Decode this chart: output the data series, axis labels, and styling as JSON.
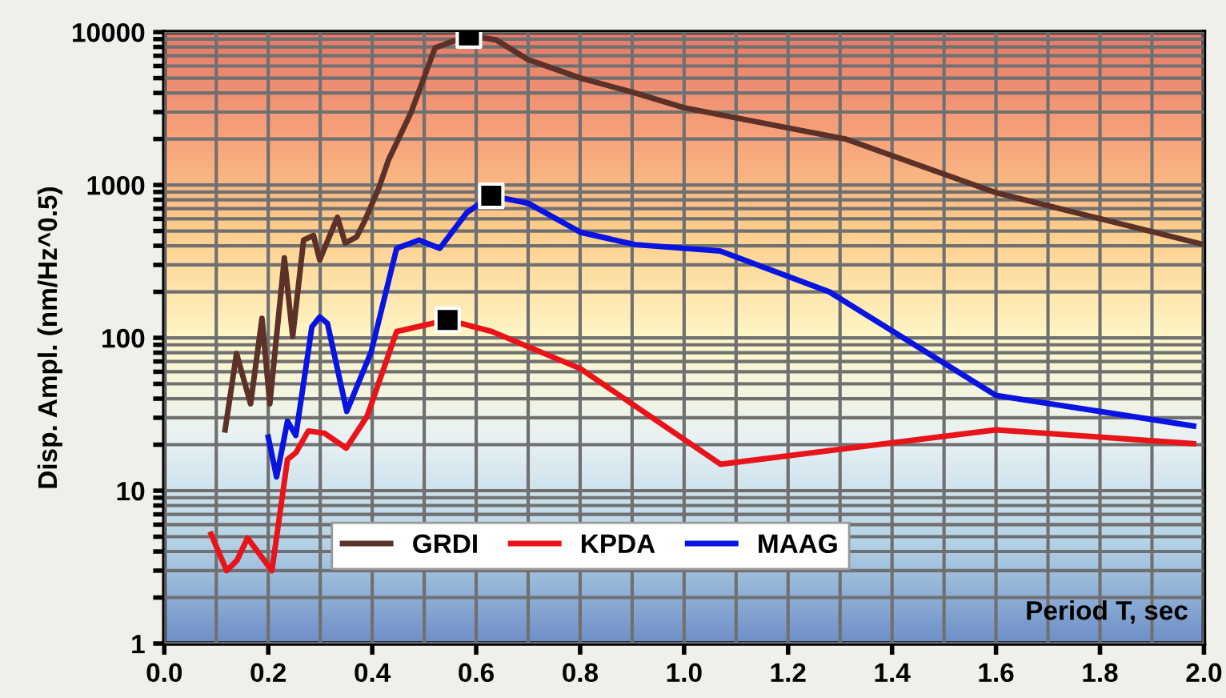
{
  "chart_data": {
    "type": "line",
    "xlabel": "Period T, sec",
    "ylabel": "Disp. Ampl. (nm/Hz^0.5)",
    "log": "y",
    "grid": true,
    "legend": "bottom",
    "marker": "none",
    "line_style": "solid",
    "xlim": [
      0,
      2.0
    ],
    "ylim": [
      1,
      10000
    ],
    "xticks": [
      {
        "value": 0,
        "label": "0.0"
      },
      {
        "value": 0.1,
        "label": null
      },
      0.2,
      {
        "value": 0.3,
        "label": null
      },
      0.4,
      {
        "value": 0.5,
        "label": null
      },
      0.6,
      {
        "value": 0.7,
        "label": null
      },
      0.8,
      {
        "value": 0.9,
        "label": null
      },
      {
        "value": 1,
        "label": "1.0"
      },
      {
        "value": 1.1,
        "label": null
      },
      1.2,
      {
        "value": 1.3,
        "label": null
      },
      1.4,
      {
        "value": 1.5,
        "label": null
      },
      1.6,
      {
        "value": 1.7,
        "label": null
      },
      1.8,
      {
        "value": 1.9,
        "label": null
      },
      {
        "value": 2,
        "label": "2.0"
      }
    ],
    "yticks": [
      1,
      {
        "value": 2,
        "label": null
      },
      {
        "value": 3,
        "label": null
      },
      {
        "value": 4,
        "label": null
      },
      {
        "value": 5,
        "label": null
      },
      {
        "value": 6,
        "label": null
      },
      {
        "value": 7,
        "label": null
      },
      {
        "value": 8,
        "label": null
      },
      {
        "value": 9,
        "label": null
      },
      10,
      {
        "value": 20,
        "label": null
      },
      {
        "value": 30,
        "label": null
      },
      {
        "value": 40,
        "label": null
      },
      {
        "value": 50,
        "label": null
      },
      {
        "value": 60,
        "label": null
      },
      {
        "value": 70,
        "label": null
      },
      {
        "value": 80,
        "label": null
      },
      {
        "value": 90,
        "label": null
      },
      100,
      {
        "value": 200,
        "label": null
      },
      {
        "value": 300,
        "label": null
      },
      {
        "value": 400,
        "label": null
      },
      {
        "value": 500,
        "label": null
      },
      {
        "value": 600,
        "label": null
      },
      {
        "value": 700,
        "label": null
      },
      {
        "value": 800,
        "label": null
      },
      {
        "value": 900,
        "label": null
      },
      1000,
      {
        "value": 2000,
        "label": null
      },
      {
        "value": 3000,
        "label": null
      },
      {
        "value": 4000,
        "label": null
      },
      {
        "value": 5000,
        "label": null
      },
      {
        "value": 6000,
        "label": null
      },
      {
        "value": 7000,
        "label": null
      },
      {
        "value": 8000,
        "label": null
      },
      {
        "value": 9000,
        "label": null
      },
      10000
    ],
    "series": [
      {
        "name": "GRDI",
        "color": "#5c3228",
        "x": [
          0.117,
          0.139,
          0.166,
          0.188,
          0.203,
          0.231,
          0.247,
          0.268,
          0.287,
          0.299,
          0.333,
          0.348,
          0.37,
          0.385,
          0.413,
          0.431,
          0.475,
          0.521,
          0.586,
          0.638,
          0.7,
          0.801,
          0.906,
          1.0,
          1.31,
          1.6,
          2.0
        ],
        "values": [
          25,
          79,
          37,
          134,
          37,
          333,
          102,
          436,
          468,
          324,
          614,
          417,
          457,
          577,
          960,
          1450,
          3000,
          7900,
          9500,
          8900,
          6600,
          5000,
          4000,
          3200,
          2000,
          890,
          407
        ]
      },
      {
        "name": "KPDA",
        "color": "#e8141a",
        "x": [
          0.09,
          0.12,
          0.14,
          0.16,
          0.207,
          0.237,
          0.253,
          0.277,
          0.308,
          0.35,
          0.39,
          0.447,
          0.545,
          0.63,
          0.8,
          1.07,
          1.6,
          1.98
        ],
        "values": [
          5.2,
          3.0,
          3.5,
          4.9,
          3.0,
          16,
          17.7,
          24.6,
          23.8,
          19,
          30.6,
          110,
          131,
          110,
          63,
          14.9,
          25,
          20.3
        ]
      },
      {
        "name": "MAAG",
        "color": "#0a14e0",
        "x": [
          0.2,
          0.216,
          0.237,
          0.253,
          0.284,
          0.299,
          0.314,
          0.351,
          0.398,
          0.447,
          0.49,
          0.53,
          0.582,
          0.629,
          0.7,
          0.801,
          0.906,
          1.069,
          1.279,
          1.6,
          1.8,
          1.98
        ],
        "values": [
          22.4,
          12.3,
          28.5,
          23,
          118,
          137,
          124,
          33,
          81,
          385,
          436,
          385,
          660,
          850,
          760,
          490,
          407,
          370,
          200,
          42,
          33,
          26.5
        ]
      },
      {
        "type": "scatter",
        "marker": "square",
        "color": "#000000",
        "x": [
          0.586,
          0.629,
          0.545
        ],
        "values": [
          9500,
          850,
          131
        ]
      }
    ]
  }
}
